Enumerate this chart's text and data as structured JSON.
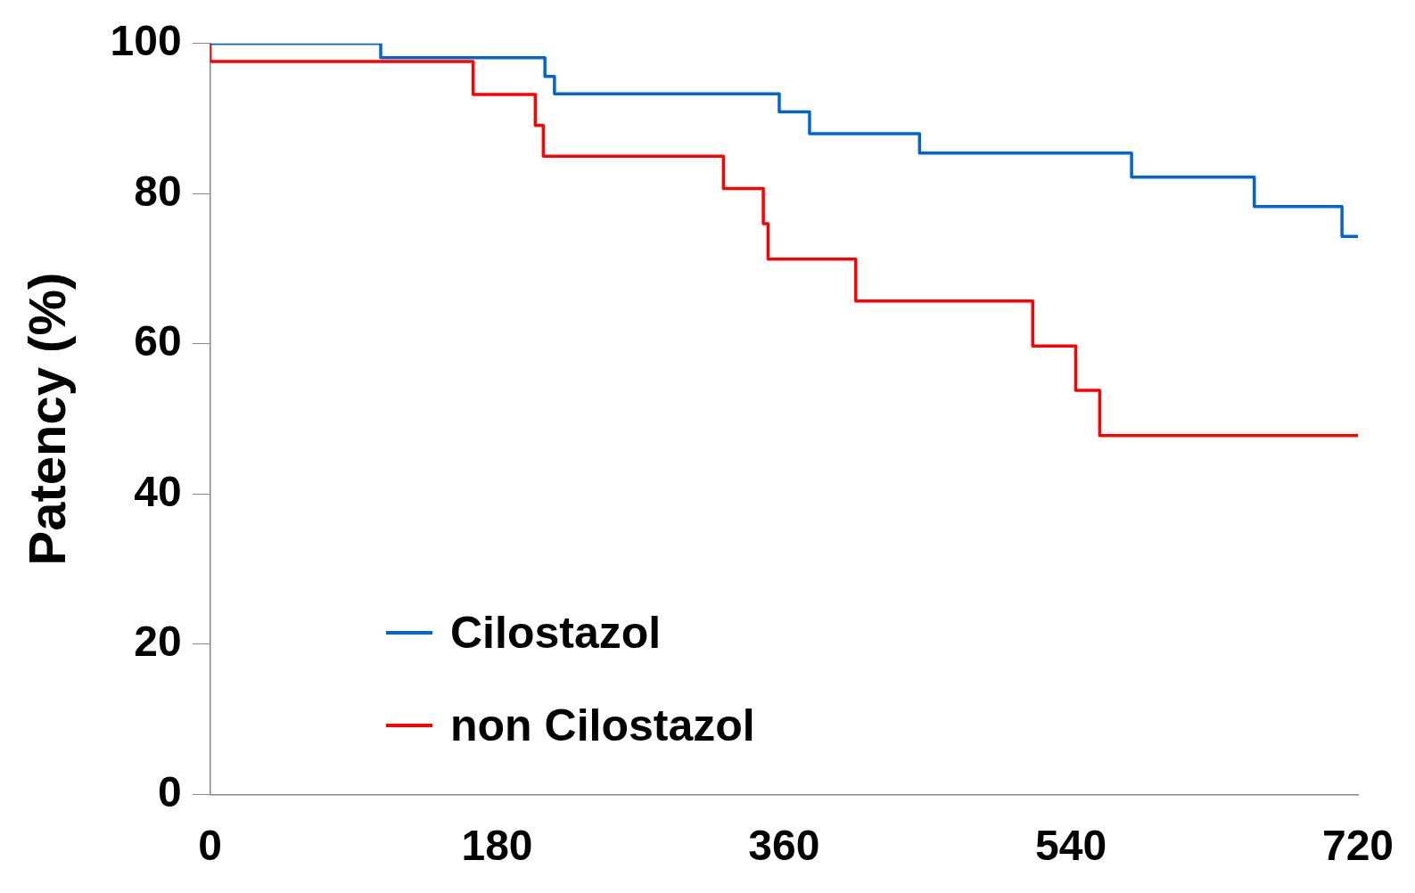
{
  "chart_data": {
    "type": "step",
    "ylabel": "Patency (%)",
    "xlim": [
      0,
      720
    ],
    "xticks": [
      0,
      180,
      360,
      540,
      720
    ],
    "ylim": [
      0,
      100
    ],
    "yticks": [
      0,
      20,
      40,
      60,
      80,
      100
    ],
    "grid": false,
    "legend": "bottom left",
    "marker": "none",
    "line_style": "solid",
    "series": [
      {
        "name": "Cilostazol",
        "color": "#0066cc",
        "x": [
          0,
          107,
          210,
          216,
          357,
          376,
          445,
          578,
          655,
          710,
          720
        ],
        "values": [
          100,
          98.1,
          95.6,
          93.3,
          90.9,
          88.0,
          85.4,
          82.2,
          78.3,
          74.3,
          74.3
        ]
      },
      {
        "name": "non Cilostazol",
        "color": "#ff0000",
        "x": [
          0,
          0,
          165,
          204,
          209,
          322,
          347,
          350,
          405,
          516,
          543,
          558,
          720
        ],
        "values": [
          100,
          97.6,
          93.2,
          89.1,
          85.0,
          80.7,
          76.0,
          71.3,
          65.7,
          59.7,
          53.8,
          47.8,
          47.8
        ]
      }
    ]
  }
}
